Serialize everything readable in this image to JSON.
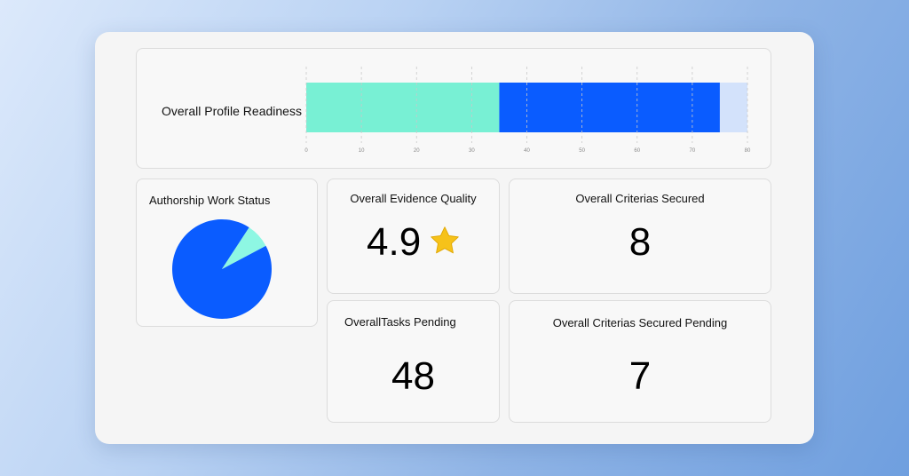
{
  "readiness": {
    "label": "Overall Profile Readiness"
  },
  "authorship": {
    "title": "Authorship Work Status"
  },
  "evidence": {
    "title": "Overall Evidence Quality",
    "value": "4.9",
    "icon": "star-icon"
  },
  "criterias": {
    "title": "Overall Criterias Secured",
    "value": "8"
  },
  "tasks": {
    "title": "OverallTasks Pending",
    "value": "48"
  },
  "pending": {
    "title": "Overall Criterias Secured Pending",
    "value": "7"
  },
  "colors": {
    "teal": "#78f0d4",
    "blue": "#0a5cff",
    "light": "#d3e2fb",
    "star": "#f6c21a",
    "pie_slice": "#8ef7e3"
  },
  "chart_data": [
    {
      "type": "bar",
      "orientation": "horizontal-stacked",
      "categories": [
        "Overall Profile Readiness"
      ],
      "series": [
        {
          "values": [
            35
          ]
        },
        {
          "values": [
            40
          ]
        },
        {
          "values": [
            5
          ]
        }
      ],
      "xlim": [
        0,
        80
      ],
      "xticks": [
        "0",
        "10",
        "20",
        "30",
        "40",
        "50",
        "60",
        "70",
        "80"
      ],
      "grid": true
    },
    {
      "type": "pie",
      "values": [
        92,
        8
      ]
    }
  ]
}
